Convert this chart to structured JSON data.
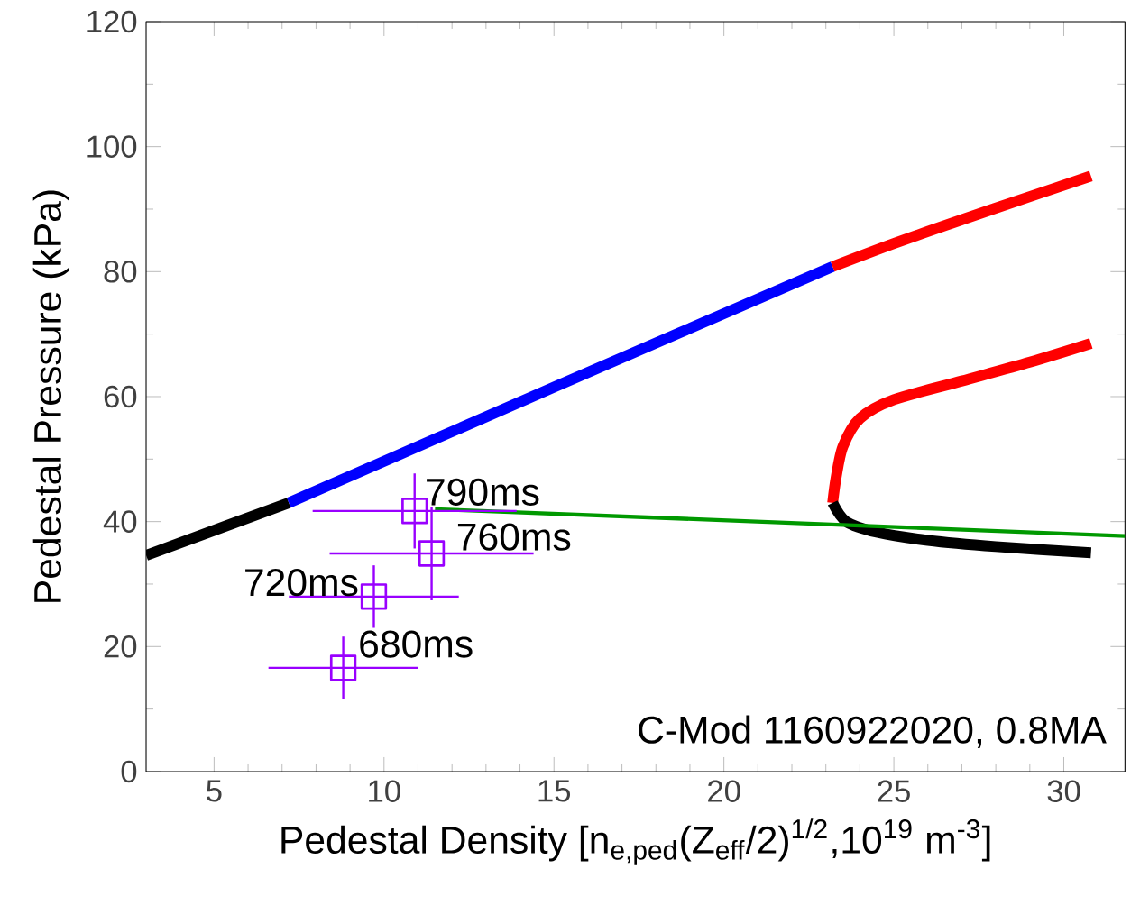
{
  "chart_data": {
    "type": "line",
    "xlabel": "Pedestal Density [n$_{e,ped}$(Z$_{eff}$/2)$^{1/2}$,10$^{19}$ m$^{-3}$]",
    "ylabel": "Pedestal Pressure (kPa)",
    "xlim": [
      3,
      31.8
    ],
    "ylim": [
      0,
      120
    ],
    "xticks": [
      5,
      10,
      15,
      20,
      25,
      30
    ],
    "yticks": [
      0,
      20,
      40,
      60,
      80,
      100,
      120
    ],
    "grid": false,
    "series": [
      {
        "color": "#000000",
        "x": [
          3,
          7.2
        ],
        "values": [
          34.6,
          43
        ]
      },
      {
        "color": "#0000ff",
        "x": [
          7.2,
          15,
          23.2
        ],
        "values": [
          43,
          61.5,
          80.8
        ]
      },
      {
        "color": "#ff0000",
        "x": [
          23.2,
          25,
          27,
          29,
          30.8
        ],
        "values": [
          80.8,
          84.5,
          88.3,
          92,
          95.3
        ]
      },
      {
        "color": "#ff0000",
        "x": [
          23.2,
          23.3,
          23.5,
          24,
          25,
          27,
          29,
          30.8
        ],
        "values": [
          43,
          47,
          52,
          56.5,
          59.5,
          62.5,
          65.5,
          68.5
        ]
      },
      {
        "color": "#000000",
        "x": [
          23.2,
          23.6,
          24.5,
          26,
          28,
          30.8
        ],
        "values": [
          43,
          40,
          38.3,
          37,
          36,
          35
        ]
      },
      {
        "color": "#009900",
        "x": [
          11.5,
          31.8
        ],
        "values": [
          42,
          37.7
        ]
      },
      {
        "type": "scatter",
        "color": "#9900ff",
        "marker": "square",
        "x": [
          10.9,
          11.4,
          9.7,
          8.8
        ],
        "values": [
          41.7,
          34.9,
          28,
          16.6
        ],
        "errors": [
          6,
          7.5,
          5,
          5
        ],
        "xerrors": [
          3,
          3,
          2.5,
          2.2
        ]
      }
    ],
    "annotations": [
      {
        "text": "790ms",
        "x": 10.9,
        "y": 41.7
      },
      {
        "text": "760ms",
        "x": 11.4,
        "y": 34.9
      },
      {
        "text": "720ms",
        "x": 9.7,
        "y": 28
      },
      {
        "text": "680ms",
        "x": 8.8,
        "y": 16.6
      },
      "C-Mod 1160922020, 0.8MA"
    ]
  }
}
